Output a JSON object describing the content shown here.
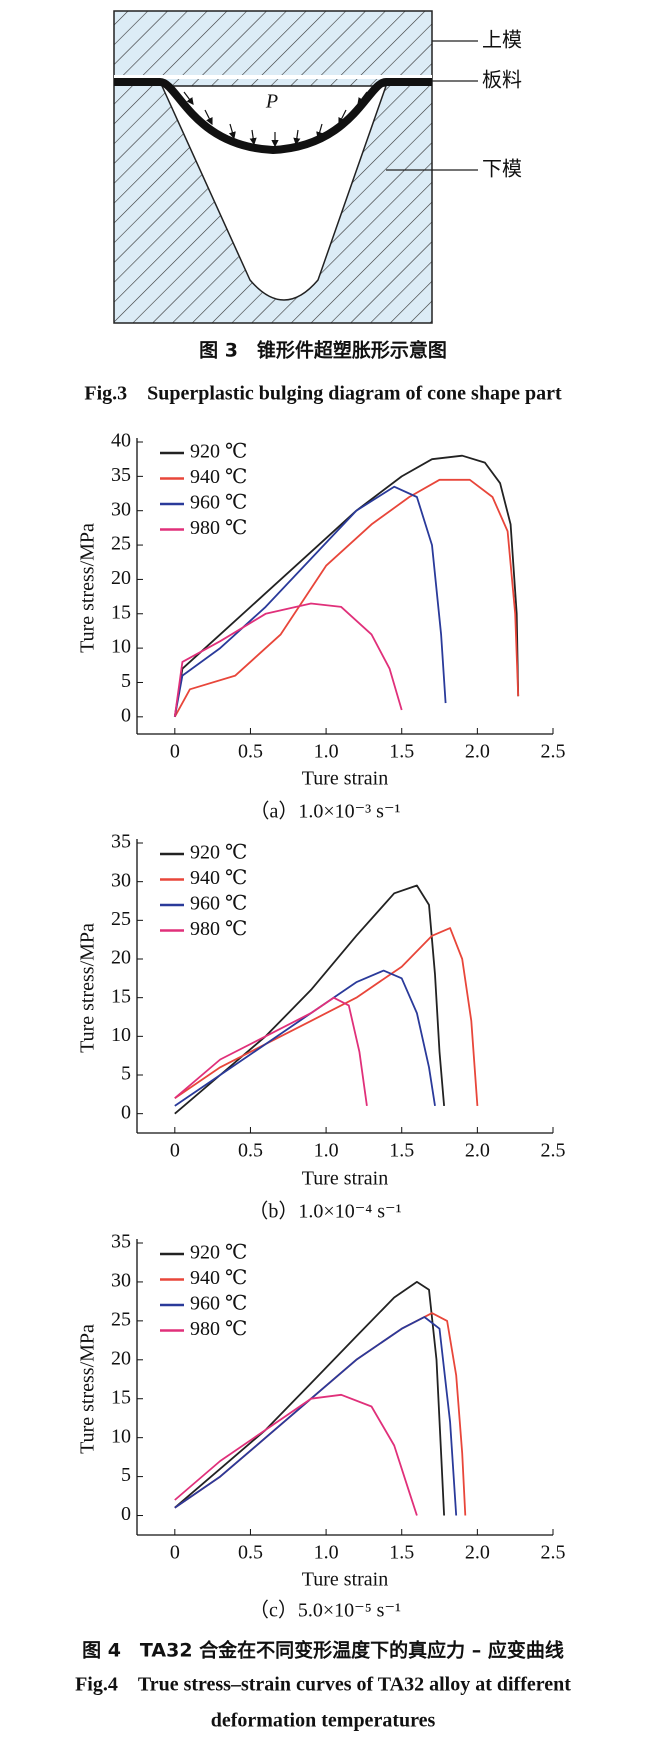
{
  "figure3": {
    "labels": {
      "upper_die": "上模",
      "sheet": "板料",
      "lower_die": "下模",
      "pressure": "P"
    },
    "caption_cn": "图 3　锥形件超塑胀形示意图",
    "caption_en": "Fig.3　Superplastic bulging diagram of cone shape part"
  },
  "chart_data": [
    {
      "type": "line",
      "caption": "（a）1.0×10⁻³ s⁻¹",
      "xlabel": "Ture strain",
      "ylabel": "Ture stress/MPa",
      "xlim": [
        -0.25,
        2.5
      ],
      "ylim": [
        -2.5,
        40
      ],
      "xticks": [
        0,
        0.5,
        {
          "value": 1,
          "label": "1.0"
        },
        1.5,
        {
          "value": 2,
          "label": "2.0"
        },
        2.5
      ],
      "yticks": [
        0,
        5,
        10,
        15,
        20,
        25,
        30,
        35,
        40
      ],
      "legend": "upper left",
      "series": [
        {
          "name": "920 ℃",
          "color": "#222222",
          "x": [
            0,
            0.05,
            0.3,
            0.6,
            0.9,
            1.2,
            1.5,
            1.7,
            1.9,
            2.05,
            2.15,
            2.22,
            2.26,
            2.27
          ],
          "values": [
            0,
            7,
            12,
            18,
            24,
            30,
            35,
            37.5,
            38,
            37,
            34,
            28,
            15,
            3
          ]
        },
        {
          "name": "940 ℃",
          "color": "#e8463a",
          "x": [
            0,
            0.1,
            0.4,
            0.7,
            1.0,
            1.3,
            1.55,
            1.75,
            1.95,
            2.1,
            2.2,
            2.25,
            2.27
          ],
          "values": [
            0,
            4,
            6,
            12,
            22,
            28,
            32,
            34.5,
            34.5,
            32,
            27,
            15,
            3
          ]
        },
        {
          "name": "960 ℃",
          "color": "#2a3a9a",
          "x": [
            0,
            0.05,
            0.3,
            0.6,
            0.9,
            1.2,
            1.45,
            1.6,
            1.7,
            1.76,
            1.79
          ],
          "values": [
            0,
            6,
            10,
            16,
            23,
            30,
            33.5,
            32,
            25,
            12,
            2
          ]
        },
        {
          "name": "980 ℃",
          "color": "#e0307a",
          "x": [
            0,
            0.05,
            0.3,
            0.6,
            0.9,
            1.1,
            1.3,
            1.42,
            1.5
          ],
          "values": [
            0,
            8,
            11,
            15,
            16.5,
            16,
            12,
            7,
            1
          ]
        }
      ]
    },
    {
      "type": "line",
      "caption": "（b）1.0×10⁻⁴ s⁻¹",
      "xlabel": "Ture strain",
      "ylabel": "Ture stress/MPa",
      "xlim": [
        -0.25,
        2.5
      ],
      "ylim": [
        -2.5,
        35
      ],
      "xticks": [
        0,
        0.5,
        {
          "value": 1,
          "label": "1.0"
        },
        1.5,
        {
          "value": 2,
          "label": "2.0"
        },
        2.5
      ],
      "yticks": [
        0,
        5,
        10,
        15,
        20,
        25,
        30,
        35
      ],
      "legend": "upper left",
      "series": [
        {
          "name": "920 ℃",
          "color": "#222222",
          "x": [
            0,
            0.3,
            0.6,
            0.9,
            1.2,
            1.45,
            1.6,
            1.68,
            1.72,
            1.75,
            1.78
          ],
          "values": [
            0,
            5,
            10,
            16,
            23,
            28.5,
            29.5,
            27,
            18,
            8,
            1
          ]
        },
        {
          "name": "940 ℃",
          "color": "#e8463a",
          "x": [
            0,
            0.3,
            0.6,
            0.9,
            1.2,
            1.5,
            1.7,
            1.82,
            1.9,
            1.96,
            2.0
          ],
          "values": [
            2,
            6,
            9,
            12,
            15,
            19,
            23,
            24,
            20,
            12,
            1
          ]
        },
        {
          "name": "960 ℃",
          "color": "#2a3a9a",
          "x": [
            0,
            0.3,
            0.6,
            0.9,
            1.2,
            1.38,
            1.5,
            1.6,
            1.68,
            1.72
          ],
          "values": [
            1,
            5,
            9,
            13,
            17,
            18.5,
            17.5,
            13,
            6,
            1
          ]
        },
        {
          "name": "980 ℃",
          "color": "#e0307a",
          "x": [
            0,
            0.3,
            0.6,
            0.9,
            1.05,
            1.15,
            1.22,
            1.27
          ],
          "values": [
            2,
            7,
            10,
            13,
            15,
            14,
            8,
            1
          ]
        }
      ]
    },
    {
      "type": "line",
      "caption": "（c）5.0×10⁻⁵ s⁻¹",
      "xlabel": "Ture strain",
      "ylabel": "Ture stress/MPa",
      "xlim": [
        -0.25,
        2.5
      ],
      "ylim": [
        -2.5,
        35
      ],
      "xticks": [
        0,
        0.5,
        {
          "value": 1,
          "label": "1.0"
        },
        1.5,
        {
          "value": 2,
          "label": "2.0"
        },
        2.5
      ],
      "yticks": [
        0,
        5,
        10,
        15,
        20,
        25,
        30,
        35
      ],
      "legend": "upper left",
      "series": [
        {
          "name": "920 ℃",
          "color": "#222222",
          "x": [
            0,
            0.3,
            0.6,
            0.9,
            1.2,
            1.45,
            1.6,
            1.68,
            1.73,
            1.76,
            1.78
          ],
          "values": [
            1,
            6,
            11,
            17,
            23,
            28,
            30,
            29,
            20,
            8,
            0
          ]
        },
        {
          "name": "940 ℃",
          "color": "#e8463a",
          "x": [
            0,
            0.3,
            0.6,
            0.9,
            1.2,
            1.5,
            1.7,
            1.8,
            1.86,
            1.9,
            1.92
          ],
          "values": [
            1,
            5,
            10,
            15,
            20,
            24,
            26,
            25,
            18,
            8,
            0
          ]
        },
        {
          "name": "960 ℃",
          "color": "#2a3a9a",
          "x": [
            0,
            0.3,
            0.6,
            0.9,
            1.2,
            1.5,
            1.65,
            1.75,
            1.82,
            1.86
          ],
          "values": [
            1,
            5,
            10,
            15,
            20,
            24,
            25.5,
            24,
            12,
            0
          ]
        },
        {
          "name": "980 ℃",
          "color": "#e0307a",
          "x": [
            0,
            0.3,
            0.6,
            0.9,
            1.1,
            1.3,
            1.45,
            1.55,
            1.6
          ],
          "values": [
            2,
            7,
            11,
            15,
            15.5,
            14,
            9,
            3,
            0
          ]
        }
      ]
    }
  ],
  "figure4": {
    "caption_cn": "图 4　TA32 合金在不同变形温度下的真应力 – 应变曲线",
    "caption_en_1": "Fig.4　True stress–strain curves of TA32 alloy at different",
    "caption_en_2": "deformation temperatures"
  }
}
